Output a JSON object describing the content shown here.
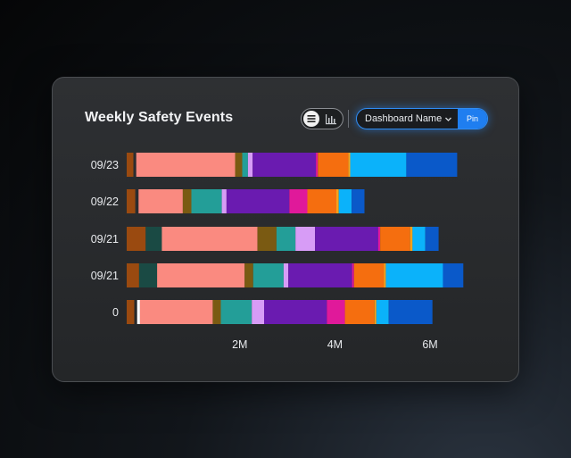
{
  "header": {
    "title": "Weekly Safety Events"
  },
  "toggle": {
    "active": "list-icon",
    "inactive": "bar-chart-icon"
  },
  "dropdown": {
    "label": "Dashboard Name",
    "pin_label": "Pin"
  },
  "colors": {
    "accent": "#1f7ef0",
    "segments": [
      "#9a4a10",
      "#1a4a44",
      "#fa8a80",
      "#7a5a12",
      "#239e98",
      "#d79cf6",
      "#6a1bb0",
      "#e0199a",
      "#f56e0f",
      "#f6a21b",
      "#0bb2fa",
      "#0a59c9"
    ]
  },
  "chart_data": {
    "type": "bar",
    "orientation": "horizontal",
    "stacked": true,
    "title": "Weekly Safety Events",
    "categories": [
      "09/23",
      "09/22",
      "09/21",
      "09/21",
      "0"
    ],
    "x_tick_labels": [
      "2M",
      "4M",
      "6M"
    ],
    "x_ticks": [
      2,
      4,
      6
    ],
    "xlim": [
      -0.38,
      7.2
    ],
    "unit": "M",
    "segments": [
      [
        {
          "s": -0.38,
          "e": -0.24,
          "c": "#9a4a10"
        },
        {
          "s": -0.18,
          "e": 1.9,
          "c": "#fa8a80"
        },
        {
          "s": 1.9,
          "e": 2.05,
          "c": "#7a5a12"
        },
        {
          "s": 2.05,
          "e": 2.17,
          "c": "#239e98"
        },
        {
          "s": 2.17,
          "e": 2.27,
          "c": "#d79cf6"
        },
        {
          "s": 2.27,
          "e": 3.6,
          "c": "#6a1bb0"
        },
        {
          "s": 3.6,
          "e": 3.64,
          "c": "#e0199a"
        },
        {
          "s": 3.64,
          "e": 4.28,
          "c": "#f56e0f"
        },
        {
          "s": 4.28,
          "e": 4.32,
          "c": "#f6a21b"
        },
        {
          "s": 4.32,
          "e": 5.5,
          "c": "#0bb2fa"
        },
        {
          "s": 5.5,
          "e": 6.57,
          "c": "#0a59c9"
        }
      ],
      [
        {
          "s": -0.38,
          "e": -0.2,
          "c": "#9a4a10"
        },
        {
          "s": -0.13,
          "e": 0.8,
          "c": "#fa8a80"
        },
        {
          "s": 0.8,
          "e": 0.98,
          "c": "#7a5a12"
        },
        {
          "s": 0.98,
          "e": 1.62,
          "c": "#239e98"
        },
        {
          "s": 1.62,
          "e": 1.72,
          "c": "#d79cf6"
        },
        {
          "s": 1.72,
          "e": 3.04,
          "c": "#6a1bb0"
        },
        {
          "s": 3.04,
          "e": 3.42,
          "c": "#e0199a"
        },
        {
          "s": 3.42,
          "e": 4.03,
          "c": "#f56e0f"
        },
        {
          "s": 4.03,
          "e": 4.08,
          "c": "#f6a21b"
        },
        {
          "s": 4.08,
          "e": 4.35,
          "c": "#0bb2fa"
        },
        {
          "s": 4.35,
          "e": 4.62,
          "c": "#0a59c9"
        }
      ],
      [
        {
          "s": -0.38,
          "e": 0.02,
          "c": "#9a4a10"
        },
        {
          "s": 0.02,
          "e": 0.36,
          "c": "#1a4a44"
        },
        {
          "s": 0.36,
          "e": 2.37,
          "c": "#fa8a80"
        },
        {
          "s": 2.37,
          "e": 2.77,
          "c": "#7a5a12"
        },
        {
          "s": 2.77,
          "e": 3.17,
          "c": "#239e98"
        },
        {
          "s": 3.17,
          "e": 3.58,
          "c": "#d79cf6"
        },
        {
          "s": 3.58,
          "e": 4.91,
          "c": "#6a1bb0"
        },
        {
          "s": 4.91,
          "e": 4.95,
          "c": "#e0199a"
        },
        {
          "s": 4.95,
          "e": 5.58,
          "c": "#f56e0f"
        },
        {
          "s": 5.58,
          "e": 5.63,
          "c": "#f6a21b"
        },
        {
          "s": 5.63,
          "e": 5.9,
          "c": "#0bb2fa"
        },
        {
          "s": 5.9,
          "e": 6.18,
          "c": "#0a59c9"
        }
      ],
      [
        {
          "s": -0.38,
          "e": -0.12,
          "c": "#9a4a10"
        },
        {
          "s": -0.12,
          "e": 0.26,
          "c": "#1a4a44"
        },
        {
          "s": 0.26,
          "e": 2.1,
          "c": "#fa8a80"
        },
        {
          "s": 2.1,
          "e": 2.28,
          "c": "#7a5a12"
        },
        {
          "s": 2.28,
          "e": 2.92,
          "c": "#239e98"
        },
        {
          "s": 2.92,
          "e": 3.02,
          "c": "#d79cf6"
        },
        {
          "s": 3.02,
          "e": 4.36,
          "c": "#6a1bb0"
        },
        {
          "s": 4.36,
          "e": 4.4,
          "c": "#e0199a"
        },
        {
          "s": 4.4,
          "e": 5.03,
          "c": "#f56e0f"
        },
        {
          "s": 5.03,
          "e": 5.07,
          "c": "#f6a21b"
        },
        {
          "s": 5.07,
          "e": 6.27,
          "c": "#0bb2fa"
        },
        {
          "s": 6.27,
          "e": 6.7,
          "c": "#0a59c9"
        }
      ],
      [
        {
          "s": -0.38,
          "e": -0.22,
          "c": "#9a4a10"
        },
        {
          "s": -0.16,
          "e": -0.1,
          "c": "#ffffff"
        },
        {
          "s": -0.1,
          "e": 1.43,
          "c": "#fa8a80"
        },
        {
          "s": 1.43,
          "e": 1.6,
          "c": "#7a5a12"
        },
        {
          "s": 1.6,
          "e": 2.25,
          "c": "#239e98"
        },
        {
          "s": 2.25,
          "e": 2.51,
          "c": "#d79cf6"
        },
        {
          "s": 2.51,
          "e": 3.83,
          "c": "#6a1bb0"
        },
        {
          "s": 3.83,
          "e": 4.21,
          "c": "#e0199a"
        },
        {
          "s": 4.21,
          "e": 4.83,
          "c": "#f56e0f"
        },
        {
          "s": 4.83,
          "e": 4.87,
          "c": "#f6a21b"
        },
        {
          "s": 4.87,
          "e": 5.13,
          "c": "#0bb2fa"
        },
        {
          "s": 5.13,
          "e": 6.05,
          "c": "#0a59c9"
        }
      ]
    ]
  }
}
